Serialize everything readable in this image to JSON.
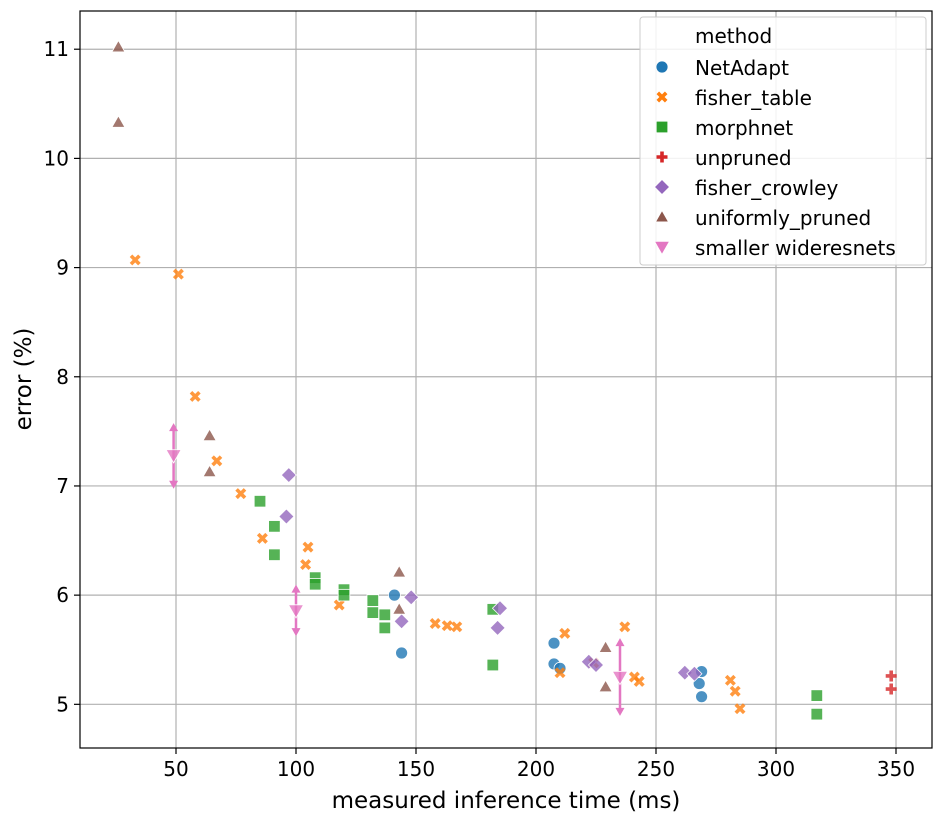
{
  "chart_data": {
    "type": "scatter",
    "xlabel": "measured inference time (ms)",
    "ylabel": "error (%)",
    "xlim": [
      10,
      365
    ],
    "ylim": [
      4.6,
      11.35
    ],
    "xticks": [
      50,
      100,
      150,
      200,
      250,
      300,
      350
    ],
    "yticks": [
      5,
      6,
      7,
      8,
      9,
      10,
      11
    ],
    "grid": true,
    "legend": {
      "title": "method",
      "placement": "top-right"
    },
    "series": [
      {
        "name": "NetAdapt",
        "marker": "circle",
        "color": "#1f77b4",
        "points": [
          [
            141,
            6.0
          ],
          [
            144,
            5.47
          ],
          [
            207.5,
            5.56
          ],
          [
            207.5,
            5.37
          ],
          [
            210,
            5.33
          ],
          [
            268,
            5.19
          ],
          [
            269,
            5.3
          ],
          [
            269,
            5.07
          ]
        ]
      },
      {
        "name": "fisher_table",
        "marker": "x",
        "color": "#ff7f0e",
        "points": [
          [
            33,
            9.07
          ],
          [
            51,
            8.94
          ],
          [
            58,
            7.82
          ],
          [
            67,
            7.23
          ],
          [
            77,
            6.93
          ],
          [
            86,
            6.52
          ],
          [
            104,
            6.28
          ],
          [
            105,
            6.44
          ],
          [
            118,
            5.91
          ],
          [
            158,
            5.74
          ],
          [
            163,
            5.72
          ],
          [
            167,
            5.71
          ],
          [
            210,
            5.29
          ],
          [
            212,
            5.65
          ],
          [
            224,
            5.38
          ],
          [
            237,
            5.71
          ],
          [
            241,
            5.25
          ],
          [
            243,
            5.21
          ],
          [
            281,
            5.22
          ],
          [
            283,
            5.12
          ],
          [
            285,
            4.96
          ]
        ]
      },
      {
        "name": "morphnet",
        "marker": "square",
        "color": "#2ca02c",
        "points": [
          [
            85,
            6.86
          ],
          [
            91,
            6.63
          ],
          [
            91,
            6.37
          ],
          [
            108,
            6.16
          ],
          [
            108,
            6.1
          ],
          [
            120,
            6.05
          ],
          [
            120,
            6.0
          ],
          [
            132,
            5.95
          ],
          [
            132,
            5.84
          ],
          [
            137,
            5.82
          ],
          [
            137,
            5.7
          ],
          [
            182,
            5.87
          ],
          [
            182,
            5.36
          ],
          [
            317,
            5.08
          ],
          [
            317,
            4.91
          ]
        ]
      },
      {
        "name": "unpruned",
        "marker": "plus",
        "color": "#d62728",
        "points": [
          [
            348,
            5.26
          ],
          [
            348,
            5.14
          ]
        ]
      },
      {
        "name": "fisher_crowley",
        "marker": "diamond",
        "color": "#9467bd",
        "points": [
          [
            97,
            7.1
          ],
          [
            96,
            6.72
          ],
          [
            144,
            5.76
          ],
          [
            148,
            5.98
          ],
          [
            185,
            5.88
          ],
          [
            184,
            5.7
          ],
          [
            222,
            5.39
          ],
          [
            225,
            5.36
          ],
          [
            262,
            5.29
          ],
          [
            266,
            5.28
          ]
        ]
      },
      {
        "name": "uniformly_pruned",
        "marker": "triangle-up",
        "color": "#8c564b",
        "points": [
          [
            26,
            11.02
          ],
          [
            26,
            10.33
          ],
          [
            64,
            7.46
          ],
          [
            64,
            7.13
          ],
          [
            143,
            6.21
          ],
          [
            143,
            5.87
          ],
          [
            229,
            5.52
          ],
          [
            229,
            5.16
          ]
        ]
      },
      {
        "name": "smaller wideresnets",
        "marker": "triangle-down",
        "color": "#e377c2",
        "points": [
          [
            49,
            7.28
          ],
          [
            100,
            5.86
          ],
          [
            235,
            5.25
          ]
        ],
        "error_bars": [
          [
            7.02,
            7.53
          ],
          [
            5.67,
            6.05
          ],
          [
            4.94,
            5.56
          ]
        ]
      }
    ]
  }
}
